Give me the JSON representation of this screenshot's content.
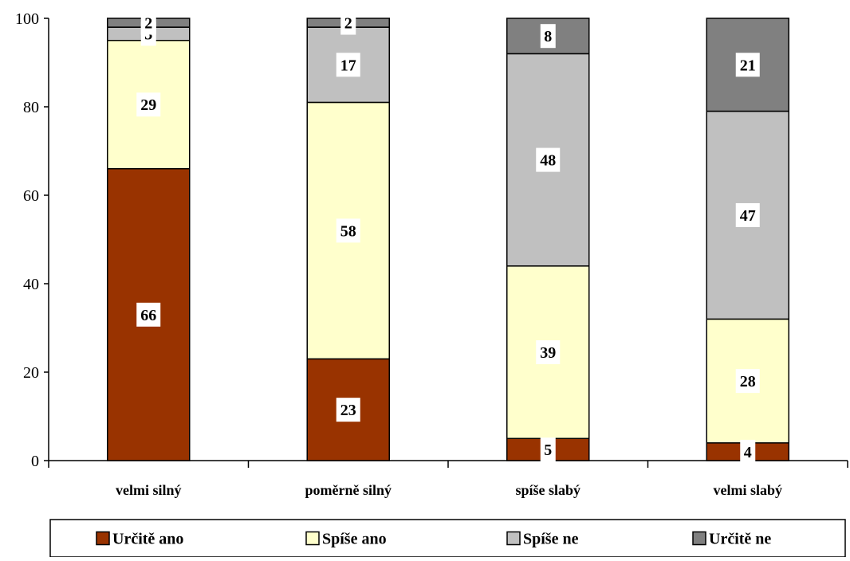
{
  "chart_data": {
    "type": "bar",
    "stacked": true,
    "title": "",
    "xlabel": "",
    "ylabel": "",
    "ylim": [
      0,
      100
    ],
    "yticks": [
      0,
      20,
      40,
      60,
      80,
      100
    ],
    "grid": false,
    "legend_position": "bottom",
    "categories": [
      "velmi silný",
      "poměrně silný",
      "spíše slabý",
      "velmi slabý"
    ],
    "series": [
      {
        "name": "Určitě ano",
        "color": "#993300",
        "values": [
          66,
          23,
          5,
          4
        ]
      },
      {
        "name": "Spíše ano",
        "color": "#FFFFCC",
        "values": [
          29,
          58,
          39,
          28
        ]
      },
      {
        "name": "Spíše ne",
        "color": "#C0C0C0",
        "values": [
          3,
          17,
          48,
          47
        ]
      },
      {
        "name": "Určitě ne",
        "color": "#808080",
        "values": [
          2,
          2,
          8,
          21
        ]
      }
    ]
  }
}
